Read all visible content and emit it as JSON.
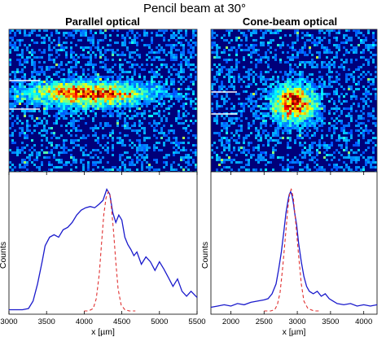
{
  "title": "Pencil beam at 30°",
  "chart_data": [
    {
      "type": "line",
      "panel_title": "Parallel optical",
      "xlabel": "x [µm]",
      "ylabel": "Counts",
      "xlim": [
        3000,
        5500
      ],
      "ylim": [
        0,
        1
      ],
      "xticks": [
        "3000",
        "3500",
        "4000",
        "4500",
        "5000",
        "5500"
      ],
      "image": {
        "type": "heatmap",
        "spot_shape": "elongated",
        "marker_lines": 2
      },
      "series": [
        {
          "style": "solid",
          "color": "#1a1acc",
          "x": [
            3000,
            3180,
            3260,
            3320,
            3380,
            3440,
            3480,
            3540,
            3600,
            3660,
            3720,
            3780,
            3840,
            3900,
            3960,
            4020,
            4080,
            4140,
            4200,
            4250,
            4300,
            4340,
            4380,
            4420,
            4460,
            4500,
            4540,
            4580,
            4620,
            4660,
            4700,
            4760,
            4820,
            4880,
            4940,
            5000,
            5060,
            5120,
            5180,
            5240,
            5300,
            5360,
            5420,
            5500
          ],
          "y": [
            0.01,
            0.01,
            0.02,
            0.08,
            0.22,
            0.4,
            0.53,
            0.6,
            0.62,
            0.6,
            0.66,
            0.68,
            0.72,
            0.78,
            0.82,
            0.84,
            0.85,
            0.84,
            0.87,
            0.9,
            0.99,
            0.95,
            0.8,
            0.72,
            0.78,
            0.74,
            0.6,
            0.54,
            0.5,
            0.45,
            0.48,
            0.38,
            0.44,
            0.4,
            0.33,
            0.4,
            0.34,
            0.27,
            0.2,
            0.26,
            0.16,
            0.12,
            0.16,
            0.11
          ]
        },
        {
          "style": "dashed",
          "color": "#e03030",
          "x": [
            4000,
            4060,
            4120,
            4160,
            4200,
            4230,
            4260,
            4290,
            4320,
            4340,
            4360,
            4390,
            4420,
            4450,
            4490,
            4540,
            4600,
            4680
          ],
          "y": [
            0.0,
            0.0,
            0.02,
            0.1,
            0.3,
            0.55,
            0.78,
            0.92,
            0.97,
            0.95,
            0.85,
            0.65,
            0.4,
            0.18,
            0.05,
            0.01,
            0.0,
            0.0
          ]
        }
      ]
    },
    {
      "type": "line",
      "panel_title": "Cone-beam optical",
      "xlabel": "x [µm]",
      "ylabel": "Counts",
      "xlim": [
        1700,
        4200
      ],
      "ylim": [
        0,
        1
      ],
      "xticks": [
        "2000",
        "2500",
        "3000",
        "3500",
        "4000"
      ],
      "image": {
        "type": "heatmap",
        "spot_shape": "round",
        "marker_lines": 2
      },
      "series": [
        {
          "style": "solid",
          "color": "#1a1acc",
          "x": [
            1700,
            1800,
            1900,
            2000,
            2100,
            2200,
            2300,
            2400,
            2500,
            2560,
            2620,
            2680,
            2720,
            2760,
            2800,
            2830,
            2860,
            2880,
            2900,
            2920,
            2940,
            2960,
            2990,
            3020,
            3060,
            3100,
            3140,
            3180,
            3240,
            3300,
            3360,
            3420,
            3480,
            3540,
            3600,
            3700,
            3800,
            3900,
            4000,
            4100,
            4200
          ],
          "y": [
            0.03,
            0.04,
            0.05,
            0.04,
            0.06,
            0.05,
            0.07,
            0.08,
            0.09,
            0.1,
            0.14,
            0.22,
            0.34,
            0.48,
            0.66,
            0.8,
            0.9,
            0.95,
            0.97,
            0.94,
            0.88,
            0.8,
            0.7,
            0.55,
            0.4,
            0.28,
            0.2,
            0.16,
            0.14,
            0.16,
            0.12,
            0.14,
            0.1,
            0.08,
            0.06,
            0.05,
            0.06,
            0.04,
            0.05,
            0.04,
            0.05
          ]
        },
        {
          "style": "dashed",
          "color": "#e03030",
          "x": [
            2500,
            2600,
            2660,
            2700,
            2740,
            2780,
            2820,
            2860,
            2890,
            2910,
            2940,
            2980,
            3020,
            3060,
            3100,
            3160,
            3250,
            3350
          ],
          "y": [
            0.0,
            0.0,
            0.01,
            0.05,
            0.15,
            0.35,
            0.6,
            0.85,
            0.97,
            0.99,
            0.92,
            0.7,
            0.45,
            0.22,
            0.08,
            0.02,
            0.0,
            0.0
          ]
        }
      ]
    }
  ]
}
